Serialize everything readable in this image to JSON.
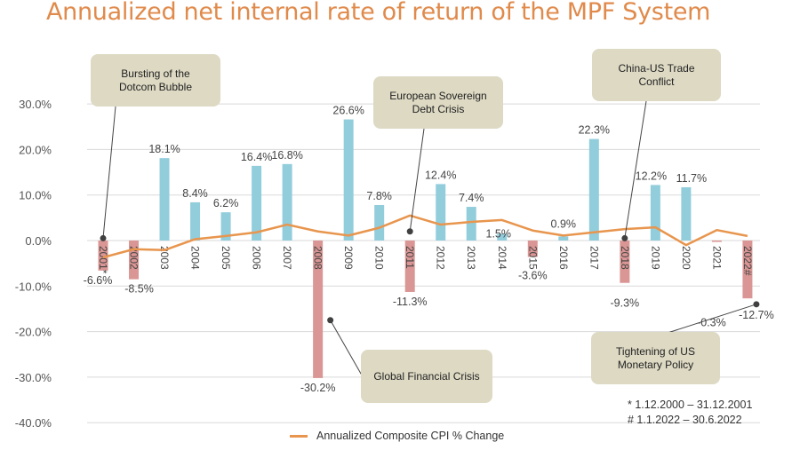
{
  "title": "Annualized net internal rate of return of the MPF System",
  "chart_data": {
    "type": "bar",
    "title": "Annualized net internal rate of return of the MPF System",
    "xlabel": "",
    "ylabel": "",
    "ylim": [
      -40,
      30
    ],
    "yticks": [
      30,
      20,
      10,
      0,
      -10,
      -20,
      -30,
      -40
    ],
    "ytick_labels": [
      "30.0%",
      "20.0%",
      "10.0%",
      "0.0%",
      "-10.0%",
      "-20.0%",
      "-30.0%",
      "-40.0%"
    ],
    "grid": true,
    "categories": [
      "2001*",
      "2002",
      "2003",
      "2004",
      "2005",
      "2006",
      "2007",
      "2008",
      "2009",
      "2010",
      "2011",
      "2012",
      "2013",
      "2014",
      "2015",
      "2016",
      "2017",
      "2018",
      "2019",
      "2020",
      "2021",
      "2022#"
    ],
    "series": [
      {
        "name": "Annualized net internal rate of return",
        "type": "bar",
        "values": [
          -6.6,
          -8.5,
          18.1,
          8.4,
          6.2,
          16.4,
          16.8,
          -30.2,
          26.6,
          7.8,
          -11.3,
          12.4,
          7.4,
          1.5,
          -3.6,
          0.9,
          22.3,
          -9.3,
          12.2,
          11.7,
          -0.3,
          -12.7
        ],
        "labels": [
          "-6.6%",
          "-8.5%",
          "18.1%",
          "8.4%",
          "6.2%",
          "16.4%",
          "16.8%",
          "-30.2%",
          "26.6%",
          "7.8%",
          "-11.3%",
          "12.4%",
          "7.4%",
          "1.5%",
          "-3.6%",
          "0.9%",
          "22.3%",
          "-9.3%",
          "12.2%",
          "11.7%",
          "-0.3%",
          "-12.7%"
        ],
        "positive_color": "#92CDDC",
        "negative_color": "#D99694"
      },
      {
        "name": "Annualized Composite CPI % Change",
        "type": "line",
        "values": [
          -3.7,
          -1.9,
          -2.1,
          0.3,
          1.0,
          1.8,
          3.5,
          2.0,
          1.1,
          2.8,
          5.5,
          3.5,
          4.1,
          4.5,
          2.2,
          1.1,
          1.8,
          2.5,
          2.9,
          -1.0,
          2.3,
          1.0
        ],
        "color": "#E8954D"
      }
    ],
    "annotations": [
      {
        "text": "Bursting of the Dotcom Bubble",
        "lines": [
          "Bursting of the",
          "Dotcom Bubble"
        ],
        "category": "2001*",
        "marker_value": 0.5
      },
      {
        "text": "Global Financial Crisis",
        "lines": [
          "Global Financial Crisis"
        ],
        "category": "2008",
        "marker_value": -17.5
      },
      {
        "text": "European Sovereign Debt Crisis",
        "lines": [
          "European Sovereign",
          "Debt Crisis"
        ],
        "category": "2011",
        "marker_value": 2.0
      },
      {
        "text": "China-US Trade Conflict",
        "lines": [
          "China-US",
          "Trade Conflict"
        ],
        "category": "2018",
        "marker_value": 0.5
      },
      {
        "text": "Tightening of US Monetary Policy",
        "lines": [
          "Tightening of US",
          "Monetary Policy"
        ],
        "category": "2022#",
        "marker_value": -14.0
      }
    ],
    "legend": {
      "position": "bottom",
      "entries": [
        "Annualized Composite CPI % Change"
      ]
    },
    "footnotes": [
      "* 1.12.2000 – 31.12.2001",
      "# 1.1.2022 – 30.6.2022"
    ]
  }
}
